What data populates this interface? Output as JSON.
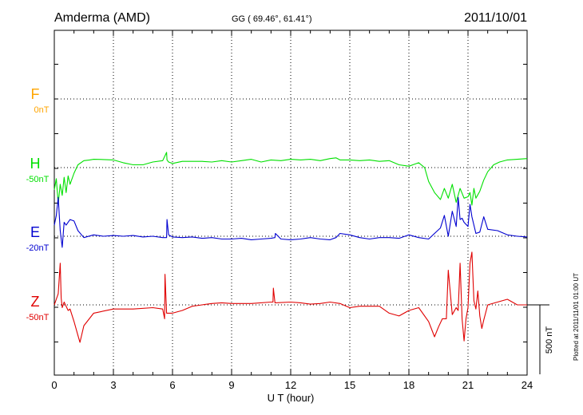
{
  "header": {
    "station": "Amderma (AMD)",
    "coords": "GG ( 69.46°,  61.41°)",
    "date": "2011/10/01"
  },
  "side_note": "Plotted at 2011/11/01 01:00 UT",
  "scale_label": "500 nT",
  "colors": {
    "F": "#ffa500",
    "H": "#00e000",
    "E": "#0000d0",
    "Z": "#e00000"
  },
  "chart_data": {
    "type": "line",
    "xlabel": "U T (hour)",
    "xlim": [
      0,
      24
    ],
    "x_ticks": [
      "0",
      "3",
      "6",
      "9",
      "12",
      "15",
      "18",
      "21",
      "24"
    ],
    "scale_bar_nT": 500,
    "series": [
      {
        "name": "F",
        "offset_label": "0nT",
        "x": [],
        "y": []
      },
      {
        "name": "H",
        "offset_label": "-50nT",
        "x": [
          0,
          0.1,
          0.2,
          0.3,
          0.4,
          0.5,
          0.6,
          0.7,
          0.8,
          1,
          1.2,
          1.5,
          1.8,
          2,
          2.5,
          3,
          3.5,
          4,
          4.5,
          5,
          5.5,
          5.7,
          5.72,
          5.8,
          6,
          6.5,
          7,
          7.5,
          8,
          8.5,
          9,
          9.5,
          10,
          10.5,
          11,
          11.5,
          12,
          12.5,
          13,
          13.5,
          14,
          14.3,
          14.5,
          15,
          15.5,
          16,
          16.5,
          17,
          17.5,
          18,
          18.2,
          18.5,
          18.8,
          19,
          19.3,
          19.6,
          19.8,
          20,
          20.2,
          20.4,
          20.6,
          20.8,
          21,
          21.1,
          21.2,
          21.3,
          21.4,
          21.6,
          21.8,
          22,
          22.3,
          22.6,
          23,
          23.5,
          24
        ],
        "y": [
          -160,
          -80,
          -260,
          -120,
          -200,
          -70,
          -180,
          -60,
          -120,
          -40,
          20,
          50,
          55,
          60,
          58,
          55,
          35,
          20,
          20,
          40,
          50,
          110,
          55,
          40,
          30,
          45,
          45,
          45,
          40,
          50,
          40,
          50,
          60,
          40,
          55,
          50,
          60,
          55,
          60,
          50,
          65,
          70,
          55,
          55,
          50,
          55,
          45,
          50,
          20,
          10,
          20,
          35,
          0,
          -100,
          -180,
          -230,
          -150,
          -220,
          -120,
          -250,
          -150,
          -220,
          -210,
          -180,
          -270,
          -150,
          -220,
          -170,
          -90,
          -30,
          20,
          40,
          55,
          60,
          65
        ]
      },
      {
        "name": "E",
        "offset_label": "-20nT",
        "x": [
          0,
          0.1,
          0.2,
          0.3,
          0.4,
          0.5,
          0.6,
          0.8,
          1,
          1.2,
          1.5,
          2,
          2.5,
          3,
          3.5,
          4,
          4.5,
          5,
          5.5,
          5.7,
          5.72,
          5.8,
          6,
          6.5,
          7,
          7.5,
          8,
          8.5,
          9,
          9.5,
          10,
          10.5,
          11,
          11.2,
          11.22,
          11.5,
          12,
          12.5,
          13,
          13.5,
          14,
          14.3,
          14.5,
          15,
          15.5,
          16,
          16.5,
          17,
          17.5,
          18,
          18.5,
          19,
          19.3,
          19.6,
          19.8,
          20,
          20.2,
          20.4,
          20.5,
          20.6,
          20.7,
          20.8,
          21,
          21.1,
          21.2,
          21.4,
          21.6,
          21.8,
          22,
          22.5,
          23,
          23.5,
          24
        ],
        "y": [
          80,
          150,
          280,
          40,
          -80,
          100,
          80,
          120,
          110,
          40,
          -10,
          10,
          0,
          5,
          0,
          5,
          -5,
          0,
          -10,
          -10,
          120,
          10,
          -5,
          -10,
          -5,
          -15,
          -10,
          -20,
          -20,
          -15,
          -25,
          -20,
          -15,
          -10,
          20,
          -20,
          -25,
          -20,
          -10,
          -20,
          -25,
          -10,
          20,
          10,
          -10,
          -20,
          -10,
          -10,
          -15,
          10,
          -10,
          -20,
          20,
          60,
          150,
          0,
          180,
          70,
          280,
          120,
          130,
          100,
          70,
          230,
          140,
          20,
          30,
          140,
          50,
          40,
          10,
          0,
          -5
        ]
      },
      {
        "name": "Z",
        "offset_label": "-50nT",
        "x": [
          0,
          0.2,
          0.3,
          0.35,
          0.4,
          0.5,
          0.7,
          0.8,
          1,
          1.2,
          1.3,
          1.5,
          2,
          3,
          4,
          5,
          5.5,
          5.6,
          5.62,
          5.7,
          6,
          6.5,
          7,
          7.5,
          8,
          8.5,
          9,
          10,
          11,
          11.1,
          11.12,
          11.2,
          12,
          12.5,
          13,
          13.5,
          14,
          14.5,
          15,
          15.5,
          16,
          16.5,
          17,
          17.5,
          18,
          18.5,
          19,
          19.3,
          19.5,
          19.7,
          19.9,
          20,
          20.2,
          20.4,
          20.5,
          20.6,
          20.7,
          20.8,
          20.9,
          21,
          21.1,
          21.2,
          21.3,
          21.4,
          21.5,
          21.6,
          21.7,
          21.8,
          22,
          22.5,
          23,
          23.5,
          24
        ],
        "y": [
          0,
          80,
          300,
          50,
          -20,
          20,
          -40,
          -30,
          -120,
          -220,
          -270,
          -150,
          -60,
          -30,
          -30,
          -20,
          -30,
          -100,
          220,
          -60,
          -60,
          -40,
          -10,
          0,
          10,
          15,
          10,
          10,
          20,
          20,
          120,
          15,
          20,
          15,
          5,
          10,
          20,
          10,
          -20,
          -10,
          -10,
          -10,
          -60,
          -80,
          -40,
          -20,
          -120,
          -230,
          -160,
          -100,
          -100,
          250,
          -70,
          -20,
          -40,
          300,
          -100,
          -260,
          -100,
          -20,
          300,
          380,
          30,
          -30,
          100,
          -80,
          -170,
          -110,
          0,
          20,
          40,
          0,
          0
        ]
      }
    ]
  }
}
